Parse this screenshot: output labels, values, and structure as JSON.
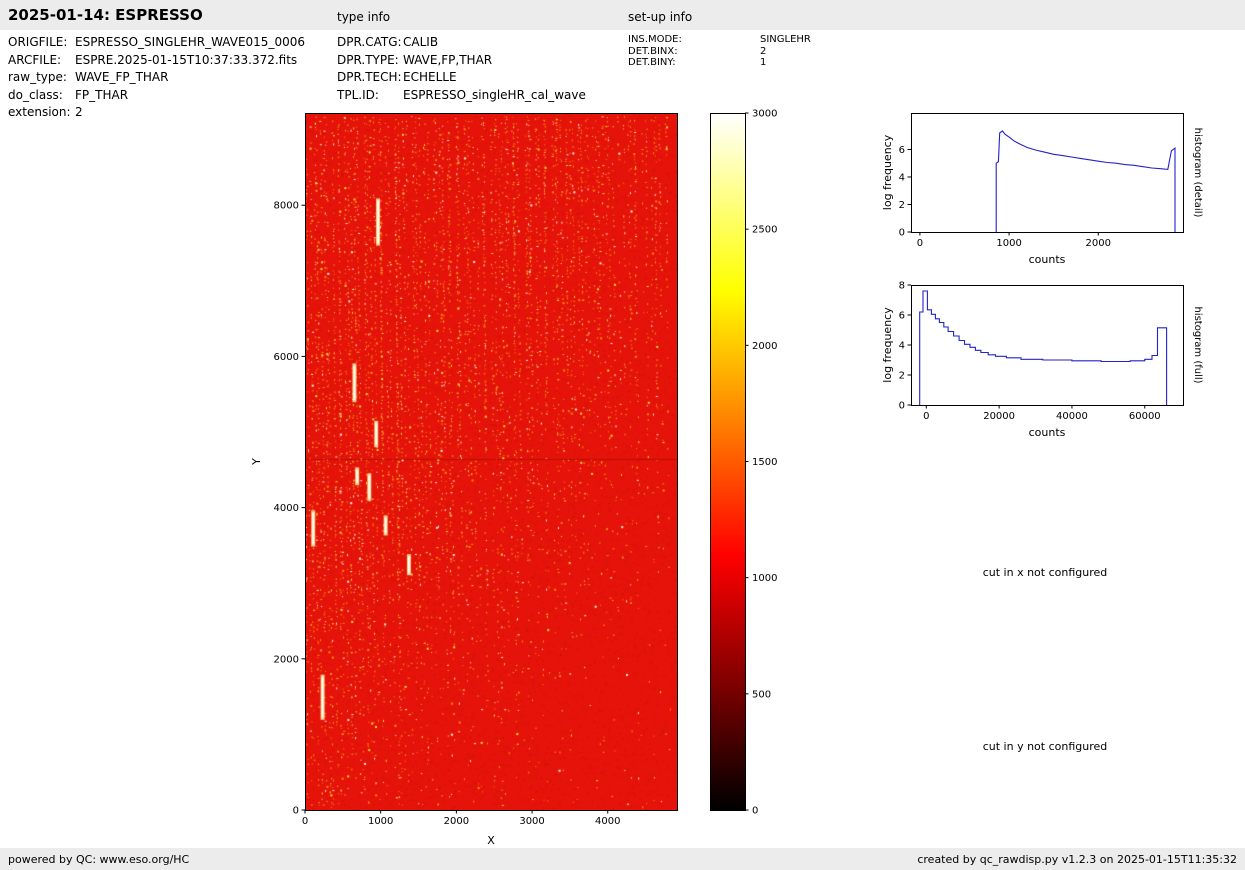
{
  "header": {
    "title": "2025-01-14: ESPRESSO",
    "type_info_heading": "type info",
    "setup_info_heading": "set-up info"
  },
  "file_info": [
    {
      "label": "ORIGFILE:",
      "value": "ESPRESSO_SINGLEHR_WAVE015_0006"
    },
    {
      "label": "ARCFILE:",
      "value": "ESPRE.2025-01-15T10:37:33.372.fits"
    },
    {
      "label": "raw_type:",
      "value": "WAVE_FP_THAR"
    },
    {
      "label": "do_class:",
      "value": "FP_THAR"
    },
    {
      "label": "extension:",
      "value": "2"
    }
  ],
  "type_info": [
    {
      "label": "DPR.CATG:",
      "value": "CALIB"
    },
    {
      "label": "DPR.TYPE:",
      "value": "WAVE,FP,THAR"
    },
    {
      "label": "DPR.TECH:",
      "value": "ECHELLE"
    },
    {
      "label": "TPL.ID:",
      "value": "ESPRESSO_singleHR_cal_wave"
    }
  ],
  "setup_info": [
    {
      "label": "INS.MODE:",
      "value": "SINGLEHR"
    },
    {
      "label": "DET.BINX:",
      "value": "2"
    },
    {
      "label": "DET.BINY:",
      "value": "1"
    }
  ],
  "messages": {
    "cut_x": "cut in x not configured",
    "cut_y": "cut in y not configured"
  },
  "footer": {
    "left": "powered by QC: www.eso.org/HC",
    "right": "created by qc_rawdisp.py v1.2.3 on 2025-01-15T11:35:32"
  },
  "chart_data": [
    {
      "id": "raw_frame",
      "type": "heatmap",
      "title": "",
      "xlabel": "X",
      "ylabel": "Y",
      "xlim": [
        0,
        4915
      ],
      "ylim": [
        0,
        9220
      ],
      "xticks": [
        0,
        1000,
        2000,
        3000,
        4000
      ],
      "yticks": [
        0,
        2000,
        4000,
        6000,
        8000
      ],
      "colormap": "hot",
      "background_color": "#e51309",
      "description": "Raw ESPRESSO FP/ThAr wave calibration frame: uniform red background (~1000 counts) crossed by many nearly vertical echelle-order traces of bright orange/yellow/white emission spots; a few saturated white smears near the left edge; faint horizontal artifact near mid-height.",
      "colorbar": {
        "min": 0,
        "max": 3000,
        "ticks": [
          0,
          500,
          1000,
          1500,
          2000,
          2500,
          3000
        ],
        "stops": [
          [
            "0%",
            "#000000"
          ],
          [
            "36.5%",
            "#ff0000"
          ],
          [
            "74.6%",
            "#ffff00"
          ],
          [
            "100%",
            "#ffffff"
          ]
        ]
      }
    },
    {
      "id": "histogram_detail",
      "type": "line",
      "xlabel": "counts",
      "ylabel": "log frequency",
      "right_label": "histogram (detail)",
      "xlim": [
        -100,
        2950
      ],
      "ylim": [
        0,
        8.65
      ],
      "xticks": [
        0,
        1000,
        2000
      ],
      "yticks": [
        0,
        2,
        4,
        6
      ],
      "line_color": "#2222cc",
      "points": [
        [
          855,
          0
        ],
        [
          855,
          5.0
        ],
        [
          880,
          5.1
        ],
        [
          895,
          7.2
        ],
        [
          925,
          7.35
        ],
        [
          955,
          7.1
        ],
        [
          1000,
          6.9
        ],
        [
          1060,
          6.6
        ],
        [
          1120,
          6.4
        ],
        [
          1200,
          6.15
        ],
        [
          1300,
          5.95
        ],
        [
          1400,
          5.8
        ],
        [
          1500,
          5.65
        ],
        [
          1600,
          5.55
        ],
        [
          1700,
          5.45
        ],
        [
          1800,
          5.35
        ],
        [
          1900,
          5.25
        ],
        [
          2000,
          5.15
        ],
        [
          2100,
          5.05
        ],
        [
          2200,
          5.0
        ],
        [
          2300,
          4.9
        ],
        [
          2400,
          4.85
        ],
        [
          2500,
          4.75
        ],
        [
          2600,
          4.65
        ],
        [
          2700,
          4.6
        ],
        [
          2780,
          4.55
        ],
        [
          2820,
          5.9
        ],
        [
          2860,
          6.1
        ],
        [
          2860,
          0
        ]
      ]
    },
    {
      "id": "histogram_full",
      "type": "line",
      "xlabel": "counts",
      "ylabel": "log frequency",
      "right_label": "histogram (full)",
      "xlim": [
        -4200,
        70500
      ],
      "ylim": [
        0,
        8
      ],
      "xticks": [
        0,
        20000,
        40000,
        60000
      ],
      "yticks": [
        0,
        2,
        4,
        6,
        8
      ],
      "line_color": "#2222cc",
      "points": [
        [
          -1800,
          0
        ],
        [
          -1800,
          6.2
        ],
        [
          -900,
          6.2
        ],
        [
          -900,
          7.6
        ],
        [
          300,
          7.6
        ],
        [
          300,
          6.35
        ],
        [
          1400,
          6.35
        ],
        [
          1400,
          6.05
        ],
        [
          2500,
          6.05
        ],
        [
          2500,
          5.75
        ],
        [
          3600,
          5.75
        ],
        [
          3600,
          5.5
        ],
        [
          4800,
          5.5
        ],
        [
          4800,
          5.2
        ],
        [
          6000,
          5.2
        ],
        [
          6000,
          4.9
        ],
        [
          7500,
          4.9
        ],
        [
          7500,
          4.6
        ],
        [
          9000,
          4.6
        ],
        [
          9000,
          4.3
        ],
        [
          10500,
          4.3
        ],
        [
          10500,
          4.05
        ],
        [
          12000,
          4.05
        ],
        [
          12000,
          3.85
        ],
        [
          13500,
          3.85
        ],
        [
          13500,
          3.65
        ],
        [
          15000,
          3.65
        ],
        [
          15000,
          3.5
        ],
        [
          17000,
          3.5
        ],
        [
          17000,
          3.35
        ],
        [
          19000,
          3.35
        ],
        [
          19000,
          3.25
        ],
        [
          22000,
          3.25
        ],
        [
          22000,
          3.15
        ],
        [
          26000,
          3.15
        ],
        [
          26000,
          3.05
        ],
        [
          32000,
          3.05
        ],
        [
          32000,
          3.0
        ],
        [
          40000,
          3.0
        ],
        [
          40000,
          2.95
        ],
        [
          48000,
          2.95
        ],
        [
          48000,
          2.9
        ],
        [
          56000,
          2.9
        ],
        [
          56000,
          2.95
        ],
        [
          60000,
          2.95
        ],
        [
          60000,
          3.05
        ],
        [
          62000,
          3.05
        ],
        [
          62000,
          3.3
        ],
        [
          63500,
          3.3
        ],
        [
          63500,
          5.15
        ],
        [
          66000,
          5.15
        ],
        [
          66000,
          0
        ]
      ]
    }
  ]
}
